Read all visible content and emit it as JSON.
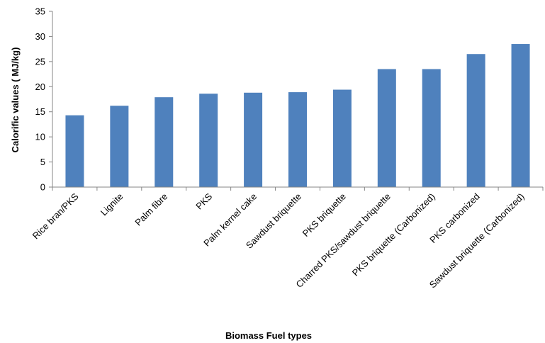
{
  "chart_data": {
    "type": "bar",
    "title": "",
    "xlabel": "Biomass  Fuel types",
    "ylabel": "Calorific values ( MJ/kg)",
    "ylim": [
      0,
      35
    ],
    "yticks": [
      0,
      5,
      10,
      15,
      20,
      25,
      30,
      35
    ],
    "grid": false,
    "legend": "none",
    "bar_color": "#4F81BD",
    "categories": [
      "Rice bran/PKS",
      "Lignite",
      "Palm fibre",
      "PKS",
      "Palm kernel cake",
      "Sawdust briquette",
      "PKS briquette",
      "Charred PKS/sawdust briquette",
      "PKS briquette (Carbonized)",
      "PKS carbonized",
      "Sawdust briquette (Carbonized)"
    ],
    "values": [
      14.3,
      16.2,
      17.9,
      18.6,
      18.8,
      18.9,
      19.4,
      23.5,
      23.5,
      26.5,
      28.5
    ]
  }
}
